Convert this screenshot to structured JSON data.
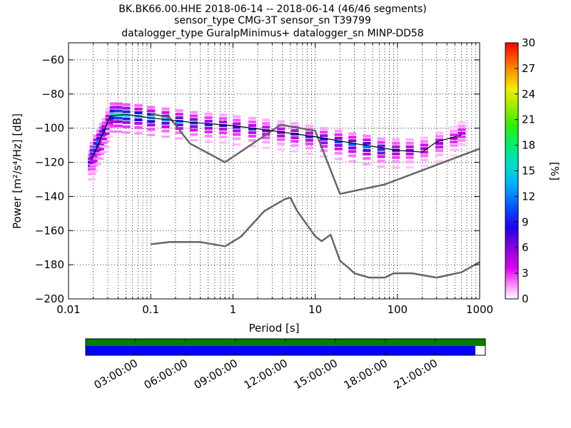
{
  "chart_data": {
    "type": "heatmap",
    "title_lines": [
      "BK.BK66.00.HHE   2018-06-14 -- 2018-06-14  (46/46 segments)",
      "sensor_type CMG-3T sensor_sn T39799",
      "datalogger_type GuralpMinimus+ datalogger_sn MINP-DD58"
    ],
    "xlabel": "Period [s]",
    "ylabel": "Power [m²/s⁴/Hz] [dB]",
    "x_scale": "log",
    "xlim": [
      0.01,
      1000
    ],
    "ylim": [
      -200,
      -50
    ],
    "x_ticks": [
      {
        "value": 0.01,
        "label": "0.01"
      },
      {
        "value": 0.1,
        "label": "0.1"
      },
      {
        "value": 1,
        "label": "1"
      },
      {
        "value": 10,
        "label": "10"
      },
      {
        "value": 100,
        "label": "100"
      },
      {
        "value": 1000,
        "label": "1000"
      }
    ],
    "y_ticks": [
      {
        "value": -60,
        "label": "−60"
      },
      {
        "value": -80,
        "label": "−80"
      },
      {
        "value": -100,
        "label": "−100"
      },
      {
        "value": -120,
        "label": "−120"
      },
      {
        "value": -140,
        "label": "−140"
      },
      {
        "value": -160,
        "label": "−160"
      },
      {
        "value": -180,
        "label": "−180"
      },
      {
        "value": -200,
        "label": "−200"
      }
    ],
    "grid": true,
    "colorbar": {
      "label": "[%]",
      "range": [
        0,
        30
      ],
      "ticks": [
        {
          "value": 0,
          "label": "0"
        },
        {
          "value": 3,
          "label": "3"
        },
        {
          "value": 6,
          "label": "6"
        },
        {
          "value": 9,
          "label": "9"
        },
        {
          "value": 12,
          "label": "12"
        },
        {
          "value": 15,
          "label": "15"
        },
        {
          "value": 18,
          "label": "18"
        },
        {
          "value": 21,
          "label": "21"
        },
        {
          "value": 24,
          "label": "24"
        },
        {
          "value": 27,
          "label": "27"
        },
        {
          "value": 30,
          "label": "30"
        }
      ]
    },
    "series": [
      {
        "values": [
          [
            0.1,
            -168
          ],
          [
            0.17,
            -166.7
          ],
          [
            0.4,
            -166.7
          ],
          [
            0.8,
            -169.2
          ],
          [
            1.24,
            -163.7
          ],
          [
            2.4,
            -148.6
          ],
          [
            4.3,
            -141.5
          ],
          [
            5.0,
            -140.7
          ],
          [
            6.0,
            -148.3
          ],
          [
            10,
            -163.3
          ],
          [
            12,
            -166.2
          ],
          [
            15.4,
            -162.4
          ],
          [
            20,
            -177.6
          ],
          [
            25,
            -181.5
          ],
          [
            30,
            -185
          ],
          [
            45,
            -187.5
          ],
          [
            70,
            -187.5
          ],
          [
            90,
            -185
          ],
          [
            150,
            -185
          ],
          [
            300,
            -187.5
          ],
          [
            600,
            -184.4
          ],
          [
            1000,
            -178.5
          ]
        ]
      },
      {
        "values": [
          [
            0.1,
            -91.5
          ],
          [
            0.17,
            -93.8
          ],
          [
            0.3,
            -109
          ],
          [
            0.8,
            -120
          ],
          [
            3.8,
            -98
          ],
          [
            10,
            -101.5
          ],
          [
            20,
            -138.5
          ],
          [
            70,
            -133
          ],
          [
            1000,
            -112
          ]
        ]
      },
      {
        "values": [
          [
            0.019,
            -118
          ],
          [
            0.027,
            -102
          ],
          [
            0.032,
            -93
          ],
          [
            0.05,
            -92
          ],
          [
            0.1,
            -94
          ],
          [
            0.3,
            -96.5
          ],
          [
            1,
            -98.5
          ],
          [
            3,
            -101.5
          ],
          [
            10,
            -105
          ],
          [
            30,
            -109
          ],
          [
            100,
            -113
          ],
          [
            200,
            -114
          ],
          [
            300,
            -108
          ],
          [
            600,
            -104
          ]
        ]
      }
    ],
    "heatmap_cells": [
      {
        "x": 0.019,
        "y": -120,
        "pct": 8
      },
      {
        "x": 0.02,
        "y": -115,
        "pct": 10
      },
      {
        "x": 0.022,
        "y": -111,
        "pct": 12
      },
      {
        "x": 0.024,
        "y": -108,
        "pct": 12
      },
      {
        "x": 0.026,
        "y": -104,
        "pct": 10
      },
      {
        "x": 0.028,
        "y": -101,
        "pct": 8
      },
      {
        "x": 0.031,
        "y": -95,
        "pct": 6
      },
      {
        "x": 0.035,
        "y": -92,
        "pct": 15
      },
      {
        "x": 0.04,
        "y": -92,
        "pct": 17
      },
      {
        "x": 0.05,
        "y": -92.5,
        "pct": 16
      },
      {
        "x": 0.07,
        "y": -93,
        "pct": 14
      },
      {
        "x": 0.1,
        "y": -94,
        "pct": 14
      },
      {
        "x": 0.15,
        "y": -95,
        "pct": 12
      },
      {
        "x": 0.22,
        "y": -96,
        "pct": 11
      },
      {
        "x": 0.33,
        "y": -97,
        "pct": 10
      },
      {
        "x": 0.5,
        "y": -98,
        "pct": 9
      },
      {
        "x": 0.75,
        "y": -98.5,
        "pct": 8
      },
      {
        "x": 1.1,
        "y": -99.5,
        "pct": 8
      },
      {
        "x": 1.7,
        "y": -100.5,
        "pct": 8
      },
      {
        "x": 2.5,
        "y": -101.5,
        "pct": 7
      },
      {
        "x": 3.8,
        "y": -102.5,
        "pct": 7
      },
      {
        "x": 5.6,
        "y": -103.5,
        "pct": 8
      },
      {
        "x": 8.4,
        "y": -105,
        "pct": 8
      },
      {
        "x": 12.6,
        "y": -106.5,
        "pct": 9
      },
      {
        "x": 19,
        "y": -108,
        "pct": 10
      },
      {
        "x": 28,
        "y": -109.5,
        "pct": 11
      },
      {
        "x": 42,
        "y": -111,
        "pct": 12
      },
      {
        "x": 63,
        "y": -112.5,
        "pct": 10
      },
      {
        "x": 95,
        "y": -113,
        "pct": 8
      },
      {
        "x": 140,
        "y": -113,
        "pct": 7
      },
      {
        "x": 210,
        "y": -112,
        "pct": 6
      },
      {
        "x": 320,
        "y": -109,
        "pct": 6
      },
      {
        "x": 480,
        "y": -106,
        "pct": 5
      },
      {
        "x": 600,
        "y": -103,
        "pct": 5
      }
    ]
  },
  "time_axis": {
    "ticks": [
      "03:00:00",
      "06:00:00",
      "09:00:00",
      "12:00:00",
      "15:00:00",
      "18:00:00",
      "21:00:00"
    ],
    "tick_hours": [
      3,
      6,
      9,
      12,
      15,
      18,
      21
    ],
    "range_hours": [
      0,
      24
    ],
    "segments_available_hours": [
      0,
      24
    ],
    "segments_used_hours": [
      0,
      23.4
    ],
    "available_color": "#008000",
    "used_color": "#0000ff"
  }
}
